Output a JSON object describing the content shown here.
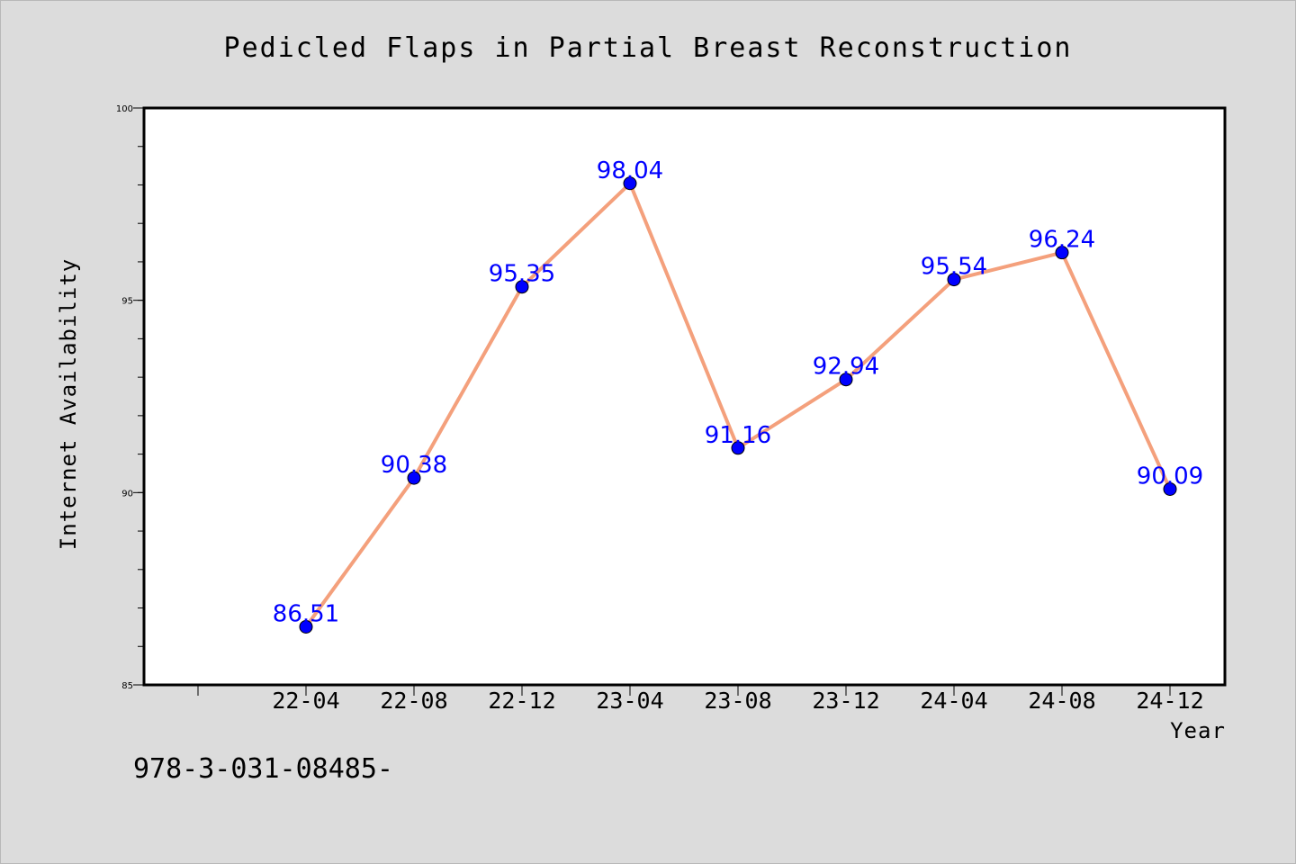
{
  "chart_data": {
    "type": "line",
    "title": "Pedicled Flaps in Partial Breast Reconstruction",
    "xlabel": "Year",
    "ylabel": "Internet Availability",
    "categories": [
      "22-04",
      "22-08",
      "22-12",
      "23-04",
      "23-08",
      "23-12",
      "24-04",
      "24-08",
      "24-12"
    ],
    "series": [
      {
        "values": [
          86.51,
          90.38,
          95.35,
          98.04,
          91.16,
          92.94,
          95.54,
          96.24,
          90.09
        ],
        "data_labels": [
          "86.51",
          "90.38",
          "95.35",
          "98.04",
          "91.16",
          "92.94",
          "95.54",
          "96.24",
          "90.09"
        ]
      }
    ],
    "ylim": [
      85,
      100
    ],
    "yticks": [
      "85",
      "90",
      "95",
      "100"
    ],
    "grid": false,
    "legend": "none",
    "colors": {
      "line": "#f4a07c",
      "marker": "#0000ff",
      "data_label": "#0000ff",
      "background": "#dcdcdc",
      "plot_background": "#ffffff"
    }
  },
  "footer": {
    "identifier": "978-3-031-08485-"
  }
}
